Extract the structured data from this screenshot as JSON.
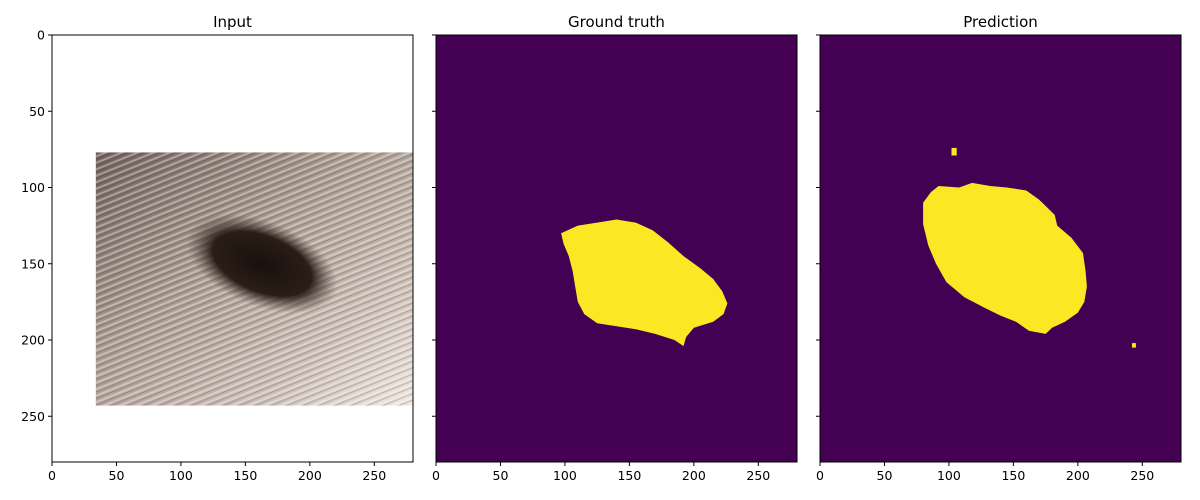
{
  "chart_data": [
    {
      "type": "heatmap",
      "title": "Input",
      "xlim": [
        0,
        280
      ],
      "ylim": [
        280,
        0
      ],
      "xticks": [
        0,
        50,
        100,
        150,
        200,
        250
      ],
      "yticks": [
        0,
        50,
        100,
        150,
        200,
        250
      ],
      "content": "photo",
      "photo_extent": {
        "x": [
          34,
          280
        ],
        "y": [
          77,
          243
        ]
      },
      "lesion": {
        "cx": 163,
        "cy": 150,
        "rx": 62,
        "ry": 28,
        "angle_deg": 22
      }
    },
    {
      "type": "heatmap",
      "title": "Ground truth",
      "xlim": [
        0,
        280
      ],
      "ylim": [
        280,
        0
      ],
      "xticks": [
        0,
        50,
        100,
        150,
        200,
        250
      ],
      "content": "mask",
      "colors": {
        "background": "#440154",
        "foreground": "#fde725"
      },
      "mask": [
        [
          [
            97,
            130
          ],
          [
            110,
            125
          ],
          [
            125,
            123
          ],
          [
            140,
            121
          ],
          [
            155,
            123
          ],
          [
            168,
            128
          ],
          [
            180,
            136
          ],
          [
            192,
            145
          ],
          [
            205,
            153
          ],
          [
            215,
            160
          ],
          [
            222,
            168
          ],
          [
            226,
            176
          ],
          [
            223,
            183
          ],
          [
            215,
            188
          ],
          [
            200,
            192
          ],
          [
            194,
            198
          ],
          [
            192,
            204
          ],
          [
            185,
            200
          ],
          [
            170,
            196
          ],
          [
            155,
            193
          ],
          [
            140,
            191
          ],
          [
            125,
            189
          ],
          [
            115,
            183
          ],
          [
            110,
            175
          ],
          [
            108,
            165
          ],
          [
            106,
            155
          ],
          [
            103,
            145
          ],
          [
            99,
            137
          ]
        ]
      ]
    },
    {
      "type": "heatmap",
      "title": "Prediction",
      "xlim": [
        0,
        280
      ],
      "ylim": [
        280,
        0
      ],
      "xticks": [
        0,
        50,
        100,
        150,
        200,
        250
      ],
      "content": "mask",
      "colors": {
        "background": "#440154",
        "foreground": "#fde725"
      },
      "mask": [
        [
          [
            80,
            110
          ],
          [
            86,
            103
          ],
          [
            92,
            99
          ],
          [
            108,
            100
          ],
          [
            118,
            97
          ],
          [
            132,
            99
          ],
          [
            145,
            100
          ],
          [
            160,
            102
          ],
          [
            170,
            108
          ],
          [
            176,
            113
          ],
          [
            182,
            118
          ],
          [
            184,
            125
          ],
          [
            195,
            133
          ],
          [
            204,
            143
          ],
          [
            206,
            155
          ],
          [
            207,
            165
          ],
          [
            205,
            175
          ],
          [
            200,
            182
          ],
          [
            190,
            188
          ],
          [
            180,
            192
          ],
          [
            175,
            196
          ],
          [
            162,
            194
          ],
          [
            152,
            188
          ],
          [
            140,
            184
          ],
          [
            128,
            179
          ],
          [
            112,
            172
          ],
          [
            98,
            162
          ],
          [
            90,
            150
          ],
          [
            84,
            138
          ],
          [
            80,
            124
          ]
        ],
        [
          [
            102,
            74
          ],
          [
            106,
            74
          ],
          [
            106,
            79
          ],
          [
            102,
            79
          ]
        ],
        [
          [
            242,
            202
          ],
          [
            245,
            202
          ],
          [
            245,
            205
          ],
          [
            242,
            205
          ]
        ]
      ]
    }
  ]
}
